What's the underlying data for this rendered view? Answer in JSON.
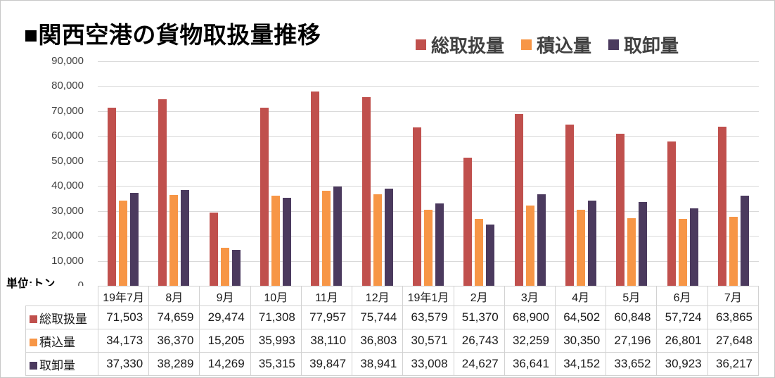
{
  "title": "■関西空港の貨物取扱量推移",
  "unit_label": "単位:トン",
  "colors": {
    "series_total": "#C0504D",
    "series_loaded": "#F79646",
    "series_unloaded": "#4B3A5E",
    "gridline": "#D9D9D9",
    "table_border": "#D2D2D2",
    "axis_text": "#404040",
    "legend_text": "#404040",
    "title_text": "#000000",
    "frame_border": "#C8C8C8"
  },
  "chart_data": {
    "type": "bar",
    "title": "■関西空港の貨物取扱量推移",
    "categories": [
      "19年7月",
      "8月",
      "9月",
      "10月",
      "11月",
      "12月",
      "19年1月",
      "2月",
      "3月",
      "4月",
      "5月",
      "6月",
      "7月"
    ],
    "series": [
      {
        "name": "総取扱量",
        "color": "#C0504D",
        "values": [
          71503,
          74659,
          29474,
          71308,
          77957,
          75744,
          63579,
          51370,
          68900,
          64502,
          60848,
          57724,
          63865
        ]
      },
      {
        "name": "積込量",
        "color": "#F79646",
        "values": [
          34173,
          36370,
          15205,
          35993,
          38110,
          36803,
          30571,
          26743,
          32259,
          30350,
          27196,
          26801,
          27648
        ]
      },
      {
        "name": "取卸量",
        "color": "#4B3A5E",
        "values": [
          37330,
          38289,
          14269,
          35315,
          39847,
          38941,
          33008,
          24627,
          36641,
          34152,
          33652,
          30923,
          36217
        ]
      }
    ],
    "xlabel": "",
    "ylabel": "単位:トン",
    "ylim": [
      0,
      90000
    ],
    "ytick_step": 10000,
    "ytick_labels": [
      "0",
      "10,000",
      "20,000",
      "30,000",
      "40,000",
      "50,000",
      "60,000",
      "70,000",
      "80,000",
      "90,000"
    ],
    "grid": true,
    "legend_position": "top-right",
    "data_table_shown": true
  }
}
